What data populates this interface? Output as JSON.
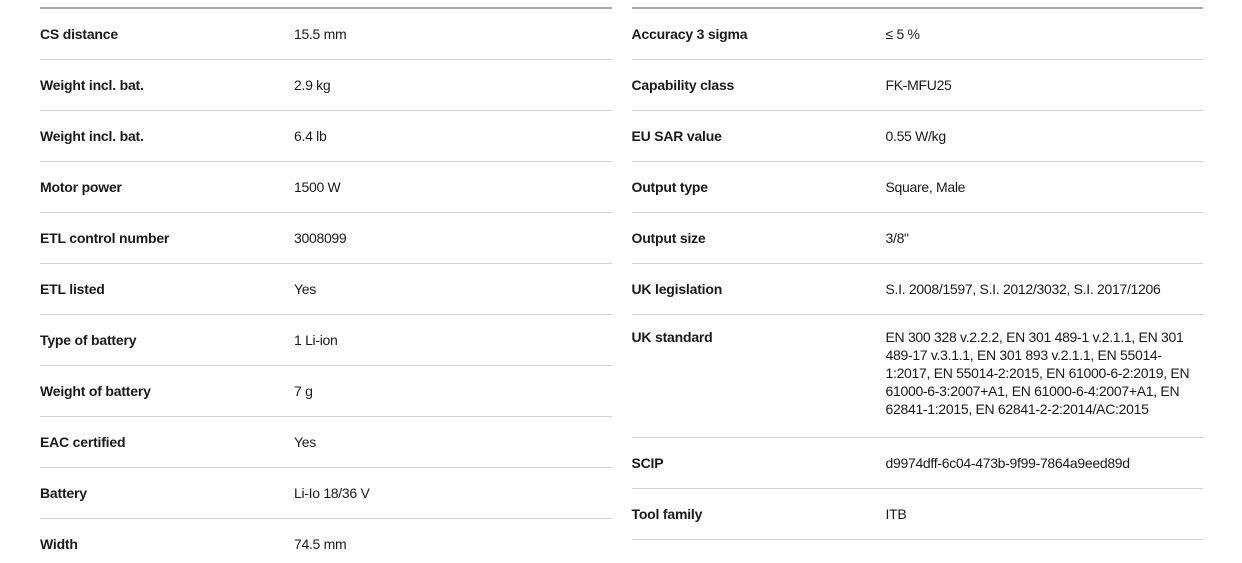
{
  "theme": {
    "background": "#ffffff",
    "text_color": "#1a1a1a",
    "row_divider_color": "#d2d2d2",
    "column_top_border_color": "#a9a9a9"
  },
  "spec_table": {
    "left_column": {
      "rows": [
        {
          "label": "CS distance",
          "value": "15.5 mm"
        },
        {
          "label": "Weight incl. bat.",
          "value": "2.9 kg"
        },
        {
          "label": "Weight incl. bat.",
          "value": "6.4 lb"
        },
        {
          "label": "Motor power",
          "value": "1500 W"
        },
        {
          "label": "ETL control number",
          "value": "3008099"
        },
        {
          "label": "ETL listed",
          "value": "Yes"
        },
        {
          "label": "Type of battery",
          "value": "1 Li-ion"
        },
        {
          "label": "Weight of battery",
          "value": "7 g"
        },
        {
          "label": "EAC certified",
          "value": "Yes"
        },
        {
          "label": "Battery",
          "value": "Li-Io 18/36 V"
        },
        {
          "label": "Width",
          "value": "74.5 mm"
        }
      ]
    },
    "right_column": {
      "rows": [
        {
          "label": "Accuracy 3 sigma",
          "value": "≤ 5 %"
        },
        {
          "label": "Capability class",
          "value": "FK-MFU25"
        },
        {
          "label": "EU SAR value",
          "value": "0.55 W/kg"
        },
        {
          "label": "Output type",
          "value": "Square, Male"
        },
        {
          "label": "Output size",
          "value": "3/8\""
        },
        {
          "label": "UK legislation",
          "value": "S.I. 2008/1597, S.I. 2012/3032, S.I. 2017/1206"
        },
        {
          "label": "UK standard",
          "value": "EN 300 328 v.2.2.2, EN 301 489-1 v.2.1.1, EN 301 489-17 v.3.1.1, EN 301 893 v.2.1.1, EN 55014-1:2017, EN 55014-2:2015, EN 61000-6-2:2019, EN 61000-6-3:2007+A1, EN 61000-6-4:2007+A1, EN 62841-1:2015, EN 62841-2-2:2014/AC:2015"
        },
        {
          "label": "SCIP",
          "value": "d9974dff-6c04-473b-9f99-7864a9eed89d"
        },
        {
          "label": "Tool family",
          "value": "ITB"
        }
      ]
    }
  }
}
